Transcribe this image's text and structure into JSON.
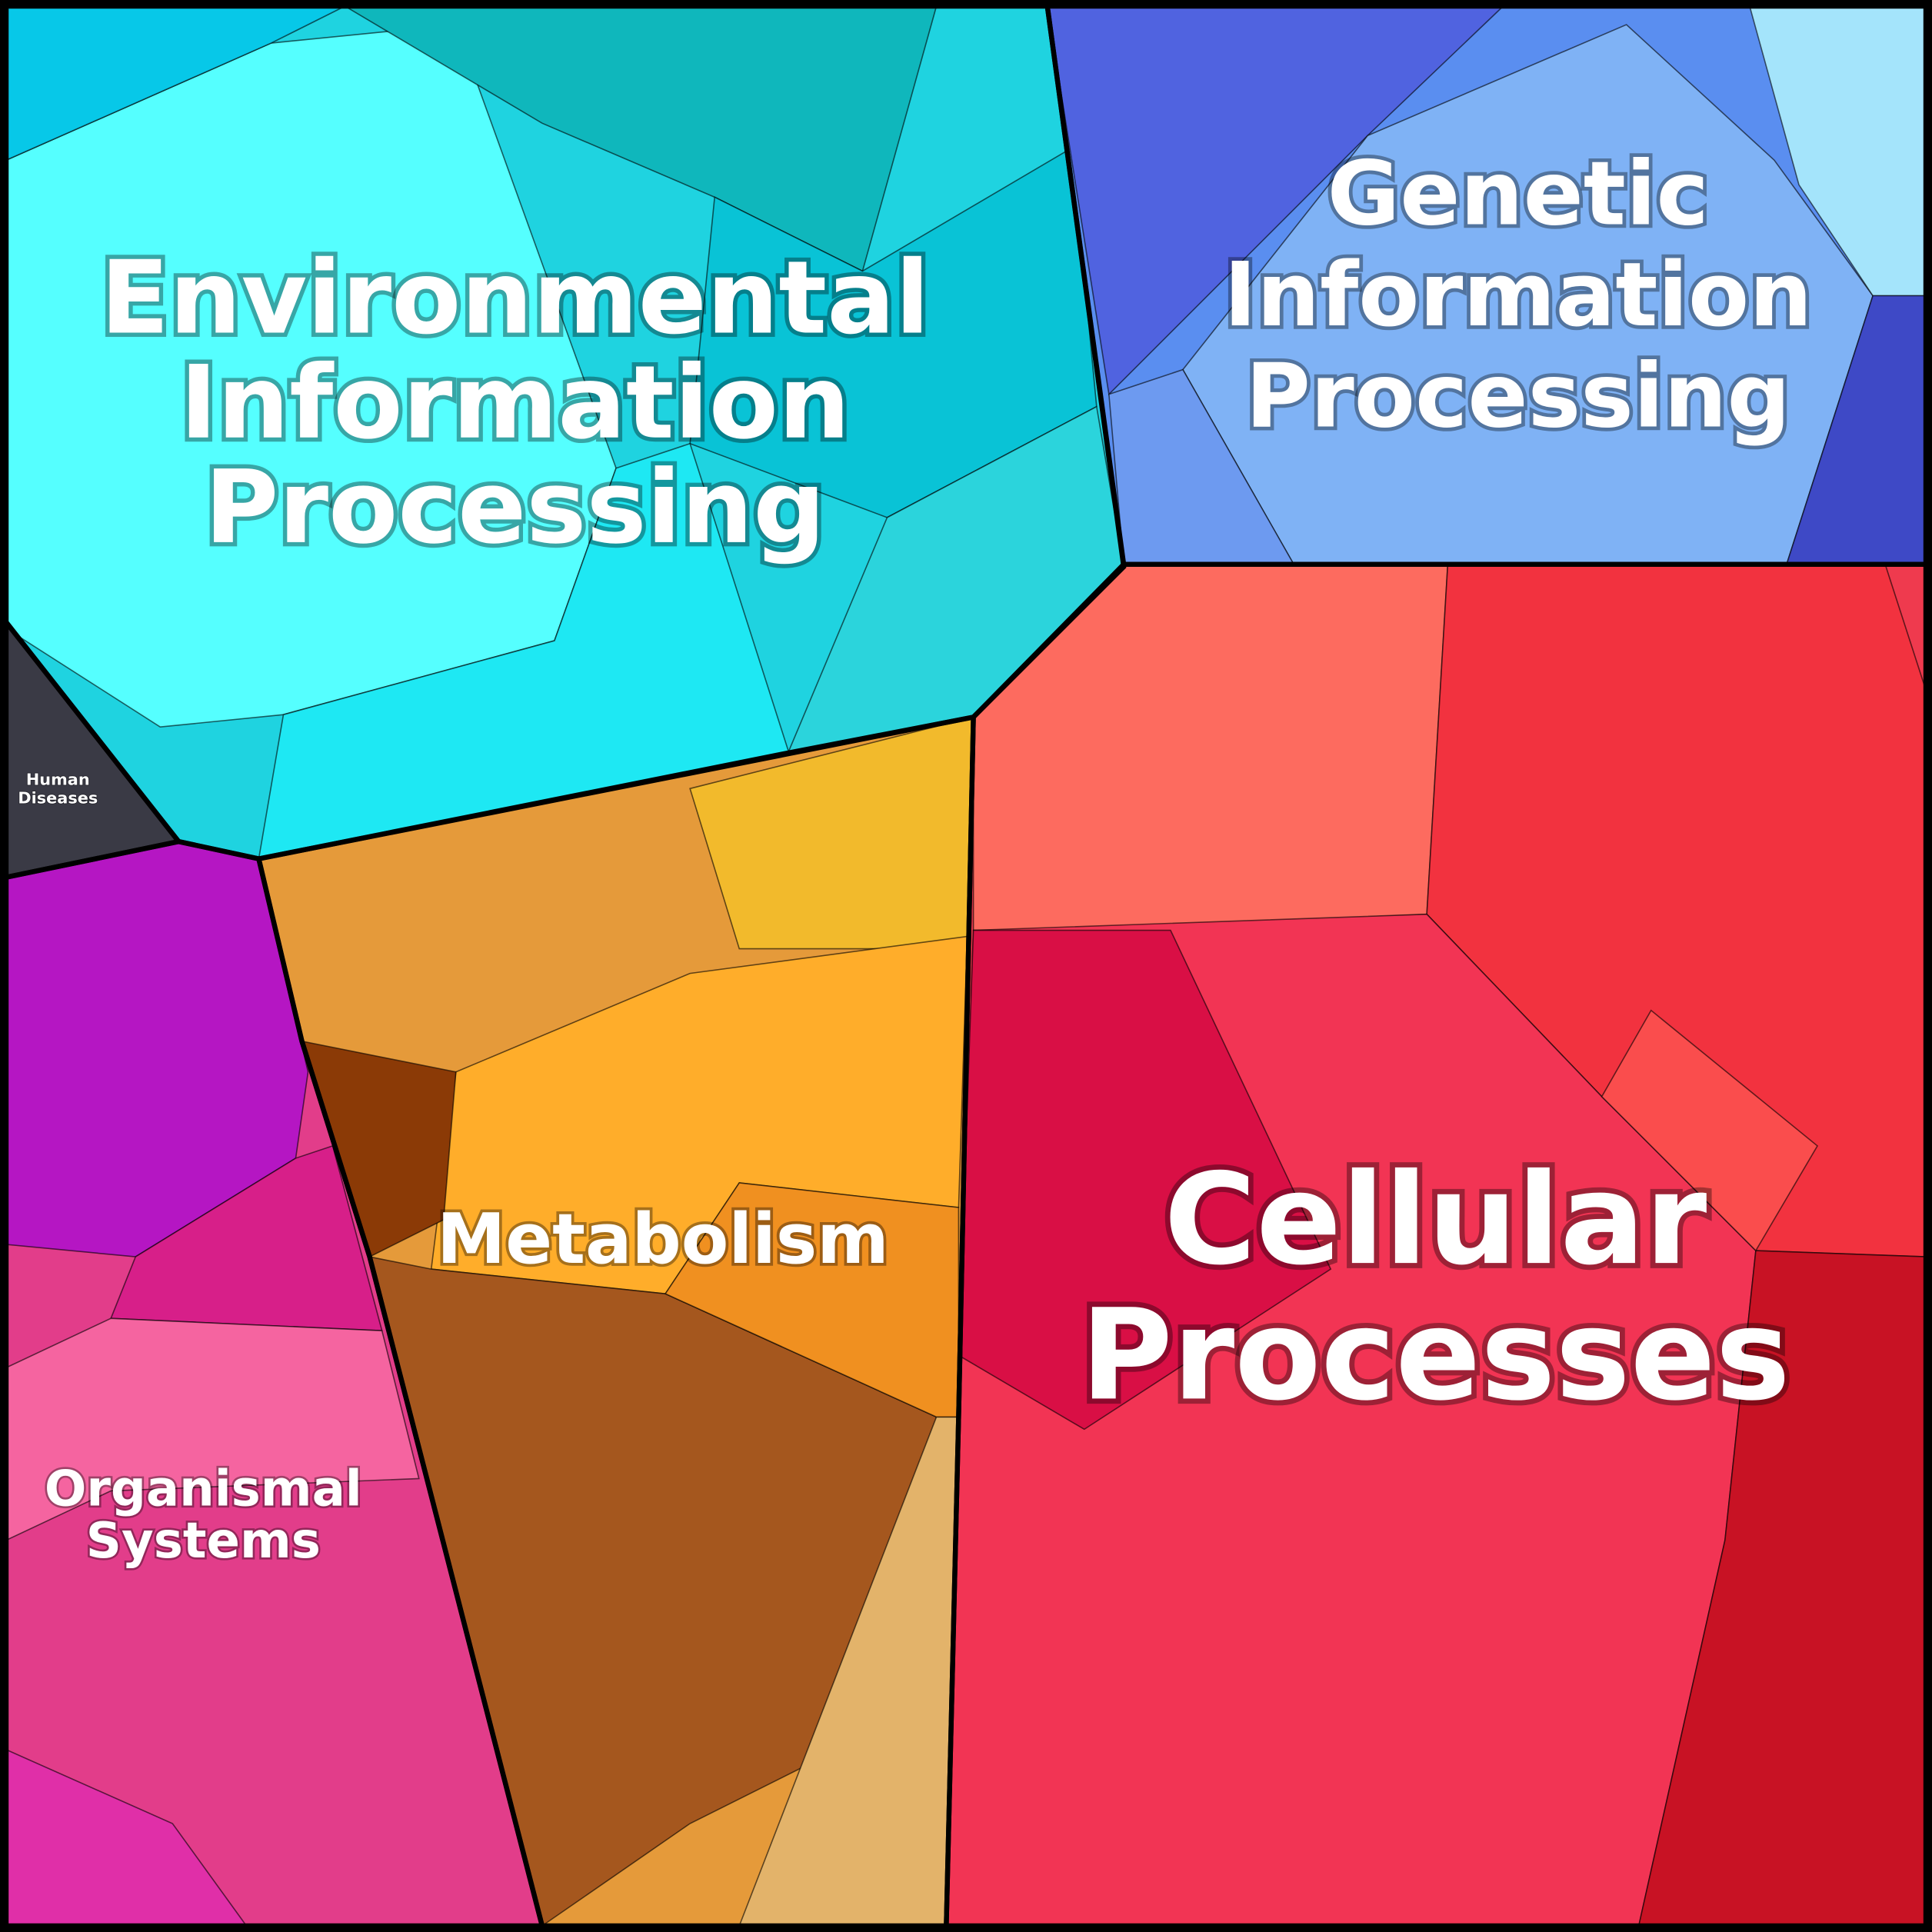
{
  "regions": [
    {
      "lines": [
        "Environmental",
        "Information",
        "Processing"
      ]
    },
    {
      "lines": [
        "Genetic",
        "Information",
        "Processing"
      ]
    },
    {
      "lines": [
        "Cellular",
        "Processes"
      ]
    },
    {
      "lines": [
        "Metabolism"
      ]
    },
    {
      "lines": [
        "Organismal",
        "Systems"
      ]
    },
    {
      "lines": [
        "Human",
        "Diseases"
      ]
    }
  ]
}
